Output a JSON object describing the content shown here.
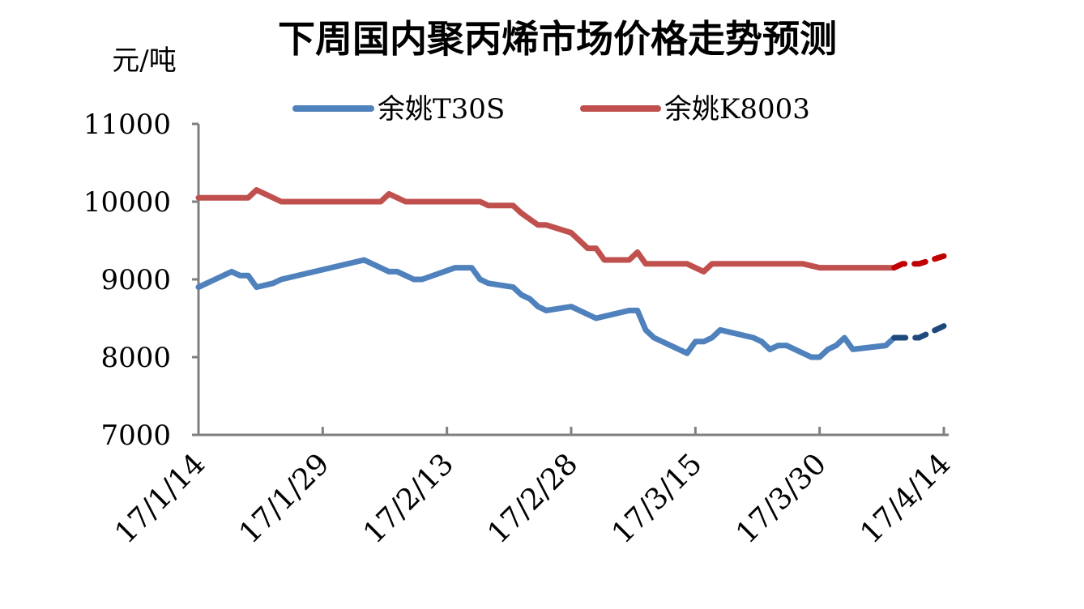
{
  "chart_data": {
    "type": "line",
    "title": "下周国内聚丙烯市场价格走势预测",
    "ylabel": "元/吨",
    "xlabel": "",
    "ylim": [
      7000,
      11000
    ],
    "yticks": [
      7000,
      8000,
      9000,
      10000,
      11000
    ],
    "ytick_labels": [
      "7000",
      "8000",
      "9000",
      "10000",
      "11000"
    ],
    "xticks": [
      "2017-01-14",
      "2017-01-29",
      "2017-02-13",
      "2017-02-28",
      "2017-03-15",
      "2017-03-30",
      "2017-04-14"
    ],
    "xtick_labels": [
      "17/1/14",
      "17/1/29",
      "17/2/13",
      "17/2/28",
      "17/3/15",
      "17/3/30",
      "17/4/14"
    ],
    "xlim": [
      "2017-01-14",
      "2017-04-14"
    ],
    "legend_position": "top",
    "grid": false,
    "series": [
      {
        "name": "余姚T30S",
        "color": "#4F81BD",
        "forecast_color": "#1F497D",
        "actual": [
          [
            "2017-01-14",
            8900
          ],
          [
            "2017-01-16",
            9000
          ],
          [
            "2017-01-18",
            9100
          ],
          [
            "2017-01-19",
            9050
          ],
          [
            "2017-01-20",
            9050
          ],
          [
            "2017-01-21",
            8900
          ],
          [
            "2017-01-23",
            8950
          ],
          [
            "2017-01-24",
            9000
          ],
          [
            "2017-02-03",
            9250
          ],
          [
            "2017-02-06",
            9100
          ],
          [
            "2017-02-07",
            9100
          ],
          [
            "2017-02-09",
            9000
          ],
          [
            "2017-02-10",
            9000
          ],
          [
            "2017-02-14",
            9150
          ],
          [
            "2017-02-16",
            9150
          ],
          [
            "2017-02-17",
            9000
          ],
          [
            "2017-02-18",
            8950
          ],
          [
            "2017-02-21",
            8900
          ],
          [
            "2017-02-22",
            8800
          ],
          [
            "2017-02-23",
            8750
          ],
          [
            "2017-02-24",
            8650
          ],
          [
            "2017-02-25",
            8600
          ],
          [
            "2017-02-28",
            8650
          ],
          [
            "2017-03-03",
            8500
          ],
          [
            "2017-03-05",
            8550
          ],
          [
            "2017-03-07",
            8600
          ],
          [
            "2017-03-08",
            8600
          ],
          [
            "2017-03-09",
            8350
          ],
          [
            "2017-03-10",
            8250
          ],
          [
            "2017-03-14",
            8050
          ],
          [
            "2017-03-15",
            8200
          ],
          [
            "2017-03-16",
            8200
          ],
          [
            "2017-03-17",
            8250
          ],
          [
            "2017-03-18",
            8350
          ],
          [
            "2017-03-22",
            8250
          ],
          [
            "2017-03-23",
            8200
          ],
          [
            "2017-03-24",
            8100
          ],
          [
            "2017-03-25",
            8150
          ],
          [
            "2017-03-26",
            8150
          ],
          [
            "2017-03-29",
            8000
          ],
          [
            "2017-03-30",
            8000
          ],
          [
            "2017-03-31",
            8100
          ],
          [
            "2017-04-01",
            8150
          ],
          [
            "2017-04-02",
            8250
          ],
          [
            "2017-04-03",
            8100
          ],
          [
            "2017-04-07",
            8150
          ],
          [
            "2017-04-08",
            8250
          ]
        ],
        "forecast": [
          [
            "2017-04-08",
            8250
          ],
          [
            "2017-04-11",
            8250
          ],
          [
            "2017-04-14",
            8400
          ]
        ]
      },
      {
        "name": "余姚K8003",
        "color": "#C0504D",
        "forecast_color": "#C00000",
        "actual": [
          [
            "2017-01-14",
            10050
          ],
          [
            "2017-01-20",
            10050
          ],
          [
            "2017-01-21",
            10150
          ],
          [
            "2017-01-24",
            10000
          ],
          [
            "2017-02-05",
            10000
          ],
          [
            "2017-02-06",
            10100
          ],
          [
            "2017-02-08",
            10000
          ],
          [
            "2017-02-17",
            10000
          ],
          [
            "2017-02-18",
            9950
          ],
          [
            "2017-02-21",
            9950
          ],
          [
            "2017-02-22",
            9850
          ],
          [
            "2017-02-24",
            9700
          ],
          [
            "2017-02-25",
            9700
          ],
          [
            "2017-02-28",
            9600
          ],
          [
            "2017-03-02",
            9400
          ],
          [
            "2017-03-03",
            9400
          ],
          [
            "2017-03-04",
            9250
          ],
          [
            "2017-03-07",
            9250
          ],
          [
            "2017-03-08",
            9350
          ],
          [
            "2017-03-09",
            9200
          ],
          [
            "2017-03-14",
            9200
          ],
          [
            "2017-03-16",
            9100
          ],
          [
            "2017-03-17",
            9200
          ],
          [
            "2017-03-28",
            9200
          ],
          [
            "2017-03-30",
            9150
          ],
          [
            "2017-04-08",
            9150
          ]
        ],
        "forecast": [
          [
            "2017-04-08",
            9150
          ],
          [
            "2017-04-09",
            9200
          ],
          [
            "2017-04-11",
            9200
          ],
          [
            "2017-04-14",
            9300
          ]
        ]
      }
    ]
  }
}
